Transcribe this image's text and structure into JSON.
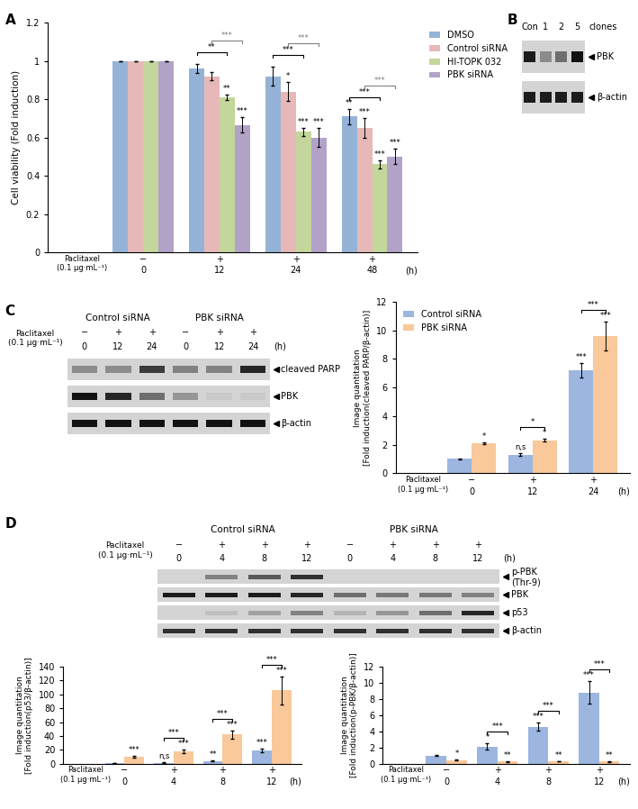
{
  "panel_labels": [
    "A",
    "B",
    "C",
    "D"
  ],
  "chart_data": [
    {
      "type": "bar",
      "y_label": "Cell viability (Fold induction)",
      "categories": [
        "0",
        "12",
        "24",
        "48"
      ],
      "treatment_label": "Paclitaxel\n(0.1 µg·mL⁻¹)",
      "treatment": [
        "−",
        "+",
        "+",
        "+"
      ],
      "x_unit": "(h)",
      "ylim": [
        0,
        1.2
      ],
      "yticks": [
        0,
        0.2,
        0.4,
        0.6,
        0.8,
        1,
        1.2
      ],
      "legend": "right",
      "series": [
        {
          "name": "DMSO",
          "color": "#95b3d7",
          "values": [
            1,
            0.96,
            0.92,
            0.71
          ],
          "errors": [
            0,
            0.025,
            0.05,
            0.04
          ],
          "significance": [
            null,
            null,
            null,
            "**"
          ]
        },
        {
          "name": "Control siRNA",
          "color": "#e6b9b8",
          "values": [
            1,
            0.92,
            0.84,
            0.65
          ],
          "errors": [
            0,
            0.02,
            0.05,
            0.05
          ],
          "significance": [
            null,
            null,
            "*",
            "***"
          ]
        },
        {
          "name": "HI-TOPK 032",
          "color": "#c3d69b",
          "values": [
            1,
            0.81,
            0.63,
            0.46
          ],
          "errors": [
            0,
            0.015,
            0.02,
            0.02
          ],
          "significance": [
            null,
            "**",
            "***",
            "***"
          ]
        },
        {
          "name": "PBK siRNA",
          "color": "#b3a2c7",
          "values": [
            1,
            0.665,
            0.6,
            0.5
          ],
          "errors": [
            0,
            0.04,
            0.05,
            0.04
          ],
          "significance": [
            null,
            "***",
            "***",
            "***"
          ]
        }
      ],
      "comparisons": [
        {
          "category": 1,
          "series": [
            0,
            2
          ],
          "text": "**",
          "color": "#000000"
        },
        {
          "category": 1,
          "series": [
            1,
            3
          ],
          "text": "***",
          "color": "#808080"
        },
        {
          "category": 2,
          "series": [
            0,
            2
          ],
          "text": "***",
          "color": "#000000"
        },
        {
          "category": 2,
          "series": [
            1,
            3
          ],
          "text": "***",
          "color": "#808080"
        },
        {
          "category": 3,
          "series": [
            0,
            2
          ],
          "text": "***",
          "color": "#000000"
        },
        {
          "category": 3,
          "series": [
            1,
            3
          ],
          "text": "***",
          "color": "#808080"
        }
      ]
    },
    {
      "type": "bar",
      "y_label": "Image quantitation\n[Fold induction(cleaved PARP/β-actin)]",
      "categories": [
        "0",
        "12",
        "24"
      ],
      "treatment_label": "Paclitaxel\n(0.1 µg·mL⁻¹)",
      "treatment": [
        "−",
        "+",
        "+"
      ],
      "x_unit": "(h)",
      "ylim": [
        0,
        12
      ],
      "yticks": [
        0,
        2,
        4,
        6,
        8,
        10,
        12
      ],
      "legend": "upper left",
      "series": [
        {
          "name": "Control siRNA",
          "color": "#9cb6e0",
          "values": [
            1,
            1.3,
            7.2
          ],
          "errors": [
            0.03,
            0.08,
            0.5
          ],
          "significance": [
            null,
            "n,s",
            "***"
          ]
        },
        {
          "name": "PBK siRNA",
          "color": "#f9c89b",
          "values": [
            2.1,
            2.3,
            9.6
          ],
          "errors": [
            0.06,
            0.1,
            1.0
          ],
          "significance": [
            "*",
            "*",
            "***"
          ]
        }
      ],
      "comparisons": [
        {
          "category": 1,
          "series": [
            0,
            1
          ],
          "text": "*",
          "color": "#000000"
        },
        {
          "category": 2,
          "series": [
            0,
            1
          ],
          "text": "***",
          "color": "#000000"
        }
      ]
    },
    {
      "type": "bar",
      "y_label": "Image quantitation\n[Fold induction(p53/β-actin)]",
      "categories": [
        "0",
        "4",
        "8",
        "12"
      ],
      "treatment_label": "Paclitaxel\n(0.1 µg·mL⁻¹)",
      "treatment": [
        "−",
        "+",
        "+",
        "+"
      ],
      "x_unit": "(h)",
      "ylim": [
        0,
        140
      ],
      "yticks": [
        0,
        20,
        40,
        60,
        80,
        100,
        120,
        140
      ],
      "series": [
        {
          "color": "#9cb6e0",
          "values": [
            1,
            1.5,
            4,
            19
          ],
          "errors": [
            0.1,
            0.3,
            0.8,
            2.5
          ],
          "significance": [
            null,
            "n,s",
            "**",
            "***"
          ]
        },
        {
          "color": "#f9c89b",
          "values": [
            9.5,
            18,
            42,
            106
          ],
          "errors": [
            1.2,
            2.5,
            6,
            20
          ],
          "significance": [
            "***",
            "***",
            "***",
            "***"
          ]
        }
      ],
      "comparisons": [
        {
          "category": 1,
          "series": [
            0,
            1
          ],
          "text": "***",
          "color": "#000000"
        },
        {
          "category": 2,
          "series": [
            0,
            1
          ],
          "text": "***",
          "color": "#000000"
        },
        {
          "category": 3,
          "series": [
            0,
            1
          ],
          "text": "***",
          "color": "#000000"
        }
      ]
    },
    {
      "type": "bar",
      "y_label": "Image quantitation\n[Fold induction(p-PBK/β-actin)]",
      "categories": [
        "0",
        "4",
        "8",
        "12"
      ],
      "treatment_label": "Paclitaxel\n(0.1 µg·mL⁻¹)",
      "treatment": [
        "−",
        "+",
        "+",
        "+"
      ],
      "x_unit": "(h)",
      "ylim": [
        0,
        12
      ],
      "yticks": [
        0,
        2,
        4,
        6,
        8,
        10,
        12
      ],
      "series": [
        {
          "color": "#9cb6e0",
          "values": [
            1,
            2.1,
            4.55,
            8.8
          ],
          "errors": [
            0.03,
            0.4,
            0.5,
            1.4
          ],
          "significance": [
            null,
            "*",
            "***",
            "***"
          ]
        },
        {
          "color": "#f9c89b",
          "values": [
            0.45,
            0.25,
            0.3,
            0.25
          ],
          "errors": [
            0.05,
            0.05,
            0.05,
            0.05
          ],
          "significance": [
            "*",
            "**",
            "**",
            "**"
          ]
        }
      ],
      "comparisons": [
        {
          "category": 1,
          "series": [
            0,
            1
          ],
          "text": "***",
          "color": "#000000"
        },
        {
          "category": 2,
          "series": [
            0,
            1
          ],
          "text": "***",
          "color": "#000000"
        },
        {
          "category": 3,
          "series": [
            0,
            1
          ],
          "text": "***",
          "color": "#000000"
        }
      ]
    }
  ],
  "blots": [
    {
      "lanes": [
        "Con",
        "1",
        "2",
        "5"
      ],
      "lane_note": "clones",
      "bands": [
        {
          "name": "PBK",
          "intensity": [
            0.9,
            0.35,
            0.5,
            0.95
          ]
        },
        {
          "name": "β-actin",
          "intensity": [
            0.9,
            0.9,
            0.9,
            0.9
          ]
        }
      ]
    },
    {
      "groups": [
        {
          "name": "Control siRNA",
          "lanes": 3
        },
        {
          "name": "PBK siRNA",
          "lanes": 3
        }
      ],
      "treatment_label": "Paclitaxel\n(0.1 µg·mL⁻¹)",
      "treatment": [
        "−",
        "+",
        "+",
        "−",
        "+",
        "+"
      ],
      "times": [
        "0",
        "12",
        "24",
        "0",
        "12",
        "24"
      ],
      "time_unit": "(h)",
      "bands": [
        {
          "name": "cleaved PARP",
          "intensity": [
            0.35,
            0.35,
            0.75,
            0.4,
            0.4,
            0.85
          ]
        },
        {
          "name": "PBK",
          "intensity": [
            0.95,
            0.85,
            0.5,
            0.3,
            0.05,
            0.05
          ]
        },
        {
          "name": "β-actin",
          "intensity": [
            0.95,
            0.95,
            0.95,
            0.95,
            0.95,
            0.95
          ]
        }
      ]
    },
    {
      "groups": [
        {
          "name": "Control siRNA",
          "lanes": 4
        },
        {
          "name": "PBK siRNA",
          "lanes": 4
        }
      ],
      "treatment_label": "Paclitaxel\n(0.1 µg·mL⁻¹)",
      "treatment": [
        "−",
        "+",
        "+",
        "+",
        "−",
        "+",
        "+",
        "+"
      ],
      "times": [
        "0",
        "4",
        "8",
        "12",
        "0",
        "4",
        "8",
        "12"
      ],
      "time_unit": "(h)",
      "bands": [
        {
          "name": "p-PBK\n(Thr-9)",
          "intensity": [
            0,
            0.4,
            0.6,
            0.8,
            0,
            0,
            0,
            0
          ]
        },
        {
          "name": "PBK",
          "intensity": [
            0.9,
            0.9,
            0.9,
            0.85,
            0.5,
            0.45,
            0.45,
            0.4
          ]
        },
        {
          "name": "p53",
          "intensity": [
            0,
            0.1,
            0.25,
            0.4,
            0.15,
            0.3,
            0.5,
            0.85
          ]
        },
        {
          "name": "β-actin",
          "intensity": [
            0.8,
            0.8,
            0.8,
            0.8,
            0.8,
            0.8,
            0.8,
            0.8
          ]
        }
      ]
    }
  ]
}
